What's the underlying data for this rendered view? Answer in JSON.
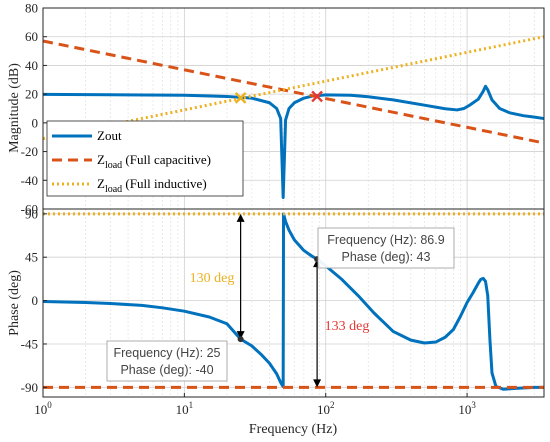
{
  "chart_data": [
    {
      "type": "line",
      "ylabel": "Magnitude (dB)",
      "xscale": "log",
      "xlim": [
        1,
        3500
      ],
      "ylim": [
        -60,
        80
      ],
      "yticks": [
        -60,
        -40,
        -20,
        0,
        20,
        40,
        60,
        80
      ],
      "grid": true,
      "legend_position": "bottom-left",
      "series": [
        {
          "name": "Zout",
          "color": "#0072BD",
          "style": "solid",
          "x": [
            1,
            3,
            10,
            20,
            30,
            40,
            45,
            48,
            50,
            52,
            55,
            60,
            70,
            80,
            100,
            150,
            200,
            300,
            500,
            700,
            850,
            950,
            1050,
            1200,
            1300,
            1350,
            1400,
            1500,
            1700,
            2000,
            2500,
            3000,
            3500
          ],
          "y": [
            19.8,
            19.6,
            19.2,
            18.4,
            17.2,
            14.0,
            10.0,
            3.0,
            -52.0,
            2.0,
            10.0,
            14.0,
            17.2,
            18.6,
            19.5,
            19.2,
            18.2,
            16.0,
            12.3,
            9.8,
            9.0,
            10.0,
            12.5,
            16.5,
            22.0,
            25.5,
            23.0,
            16.0,
            10.0,
            7.0,
            5.0,
            4.0,
            3.0
          ]
        },
        {
          "name": "Z_load (Full capacitive)",
          "color": "#D95319",
          "style": "dashed",
          "x": [
            1,
            3500
          ],
          "y": [
            57,
            -14
          ]
        },
        {
          "name": "Z_load (Full inductive)",
          "color": "#EDB120",
          "style": "dotted",
          "x": [
            1,
            3500
          ],
          "y": [
            -11,
            60
          ]
        }
      ],
      "markers": [
        {
          "x": 25,
          "y": 17.4,
          "color": "#EDB120"
        },
        {
          "x": 86.9,
          "y": 18.4,
          "color": "#E53935"
        }
      ]
    },
    {
      "type": "line",
      "ylabel": "Phase (deg)",
      "xlabel": "Frequency  (Hz)",
      "xscale": "log",
      "xlim": [
        1,
        3500
      ],
      "ylim": [
        -100,
        95
      ],
      "yticks": [
        -90,
        -45,
        0,
        45,
        90
      ],
      "xticks": [
        1,
        10,
        100,
        1000
      ],
      "xtick_labels": [
        {
          "base": "10",
          "exp": "0"
        },
        {
          "base": "10",
          "exp": "1"
        },
        {
          "base": "10",
          "exp": "2"
        },
        {
          "base": "10",
          "exp": "3"
        }
      ],
      "grid": true,
      "series": [
        {
          "name": "Zout",
          "color": "#0072BD",
          "style": "solid",
          "x": [
            1,
            2,
            3,
            5,
            7,
            10,
            15,
            20,
            25,
            30,
            35,
            40,
            45,
            48,
            49.8,
            50,
            50.3,
            52,
            55,
            60,
            70,
            80,
            86.9,
            100,
            130,
            170,
            220,
            300,
            400,
            500,
            600,
            700,
            800,
            900,
            1000,
            1100,
            1200,
            1250,
            1300,
            1350,
            1400,
            1450,
            1500,
            1600,
            1800,
            2200,
            3000,
            3500
          ],
          "y": [
            -1,
            -2,
            -3,
            -5,
            -7.5,
            -11,
            -17,
            -24,
            -40,
            -47,
            -56,
            -65,
            -76,
            -85,
            -89,
            -89,
            90,
            82,
            73,
            63,
            52,
            46,
            43,
            36,
            22,
            5,
            -13,
            -32,
            -41,
            -44,
            -43,
            -38,
            -30,
            -16,
            -2,
            8,
            18,
            22,
            23,
            20,
            5,
            -40,
            -75,
            -89,
            -92,
            -91,
            -90,
            -90
          ]
        },
        {
          "name": "Z_load (Full capacitive)",
          "color": "#D95319",
          "style": "dashed",
          "x": [
            1,
            3500
          ],
          "y": [
            -90,
            -90
          ]
        },
        {
          "name": "Z_load (Full inductive)",
          "color": "#EDB120",
          "style": "dotted",
          "x": [
            1,
            3500
          ],
          "y": [
            90,
            90
          ]
        }
      ],
      "datatips": [
        {
          "x": 25,
          "y": -40,
          "label_freq": "Frequency (Hz): 25",
          "label_phase": "Phase (deg): -40"
        },
        {
          "x": 86.9,
          "y": 43,
          "label_freq": "Frequency (Hz): 86.9",
          "label_phase": "Phase (deg): 43"
        }
      ],
      "annotations": [
        {
          "text": "130 deg",
          "color": "#EDB120"
        },
        {
          "text": "133 deg",
          "color": "#E53935"
        }
      ]
    }
  ]
}
